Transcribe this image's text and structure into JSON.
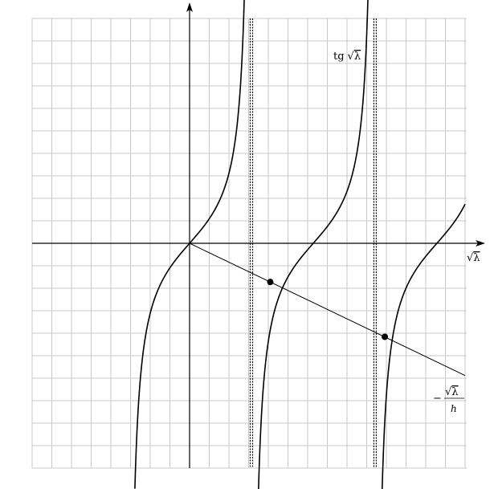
{
  "chart_data": {
    "type": "line",
    "title": "",
    "xlabel_parts": {
      "radical": "√",
      "var": "λ"
    },
    "ylabel": "",
    "xlim": [
      -4,
      7
    ],
    "ylim": [
      -5,
      5
    ],
    "grid": true,
    "series": [
      {
        "name": "tg √λ",
        "name_parts": {
          "func": "tg",
          "radical": "√",
          "var": "λ"
        },
        "kind": "tan",
        "x_range": [
          -1.45,
          7.0
        ]
      },
      {
        "name": "−√λ/h",
        "name_parts": {
          "sign": "−",
          "radical": "√",
          "var": "λ",
          "denominator": "h"
        },
        "kind": "linear",
        "slope": -0.42,
        "x_range": [
          0,
          7.0
        ]
      }
    ],
    "asymptotes": [
      1.5708,
      4.7124
    ],
    "intersections": [
      {
        "x": 2.05,
        "y": -0.86
      },
      {
        "x": 4.96,
        "y": -2.08
      }
    ]
  }
}
